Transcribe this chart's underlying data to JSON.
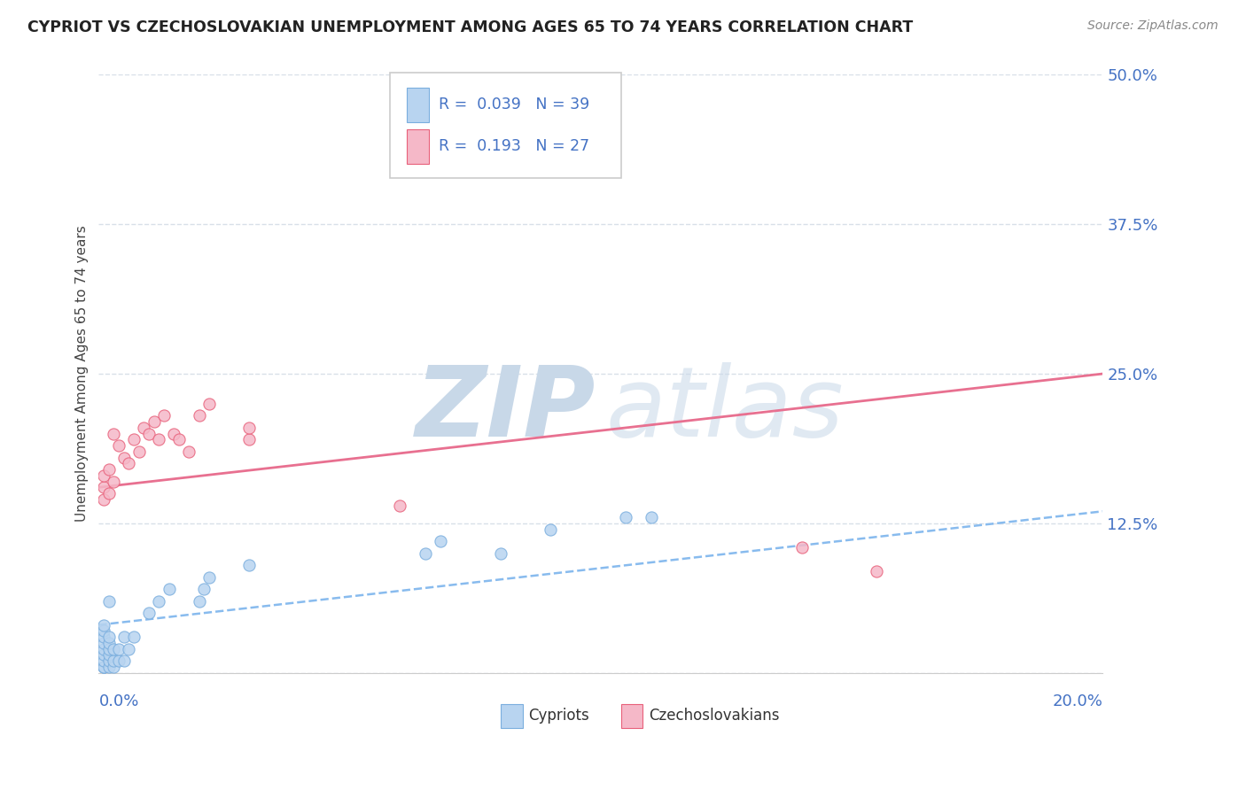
{
  "title": "CYPRIOT VS CZECHOSLOVAKIAN UNEMPLOYMENT AMONG AGES 65 TO 74 YEARS CORRELATION CHART",
  "source": "Source: ZipAtlas.com",
  "ylabel": "Unemployment Among Ages 65 to 74 years",
  "xlim": [
    0.0,
    0.2
  ],
  "ylim": [
    0.0,
    0.5
  ],
  "yticks": [
    0.0,
    0.125,
    0.25,
    0.375,
    0.5
  ],
  "ytick_labels": [
    "",
    "12.5%",
    "25.0%",
    "37.5%",
    "50.0%"
  ],
  "cypriot_fill": "#b8d4f0",
  "cypriot_edge": "#7aaede",
  "czechoslovakian_fill": "#f5b8c8",
  "czechoslovakian_edge": "#e8607a",
  "trend_cypriot_color": "#88bbee",
  "trend_czechoslovakian_color": "#e87090",
  "watermark_zip_color": "#c8d8e8",
  "watermark_atlas_color": "#c8d8e8",
  "background_color": "#ffffff",
  "grid_color": "#d8e0e8",
  "axis_label_color": "#4472c4",
  "title_color": "#222222",
  "source_color": "#888888",
  "cypriot_x": [
    0.001,
    0.001,
    0.001,
    0.001,
    0.001,
    0.001,
    0.001,
    0.001,
    0.001,
    0.001,
    0.002,
    0.002,
    0.002,
    0.002,
    0.002,
    0.002,
    0.002,
    0.003,
    0.003,
    0.003,
    0.004,
    0.004,
    0.005,
    0.005,
    0.006,
    0.007,
    0.01,
    0.012,
    0.014,
    0.02,
    0.021,
    0.022,
    0.03,
    0.065,
    0.068,
    0.08,
    0.09,
    0.105,
    0.11
  ],
  "cypriot_y": [
    0.005,
    0.005,
    0.005,
    0.01,
    0.015,
    0.02,
    0.025,
    0.03,
    0.035,
    0.04,
    0.005,
    0.01,
    0.015,
    0.02,
    0.025,
    0.03,
    0.06,
    0.005,
    0.01,
    0.02,
    0.01,
    0.02,
    0.01,
    0.03,
    0.02,
    0.03,
    0.05,
    0.06,
    0.07,
    0.06,
    0.07,
    0.08,
    0.09,
    0.1,
    0.11,
    0.1,
    0.12,
    0.13,
    0.13
  ],
  "czechoslovakian_x": [
    0.001,
    0.001,
    0.001,
    0.002,
    0.002,
    0.003,
    0.003,
    0.004,
    0.005,
    0.006,
    0.007,
    0.008,
    0.009,
    0.01,
    0.011,
    0.012,
    0.013,
    0.015,
    0.016,
    0.018,
    0.02,
    0.022,
    0.03,
    0.03,
    0.06,
    0.14,
    0.155
  ],
  "czechoslovakian_y": [
    0.145,
    0.155,
    0.165,
    0.15,
    0.17,
    0.16,
    0.2,
    0.19,
    0.18,
    0.175,
    0.195,
    0.185,
    0.205,
    0.2,
    0.21,
    0.195,
    0.215,
    0.2,
    0.195,
    0.185,
    0.215,
    0.225,
    0.195,
    0.205,
    0.14,
    0.105,
    0.085
  ]
}
